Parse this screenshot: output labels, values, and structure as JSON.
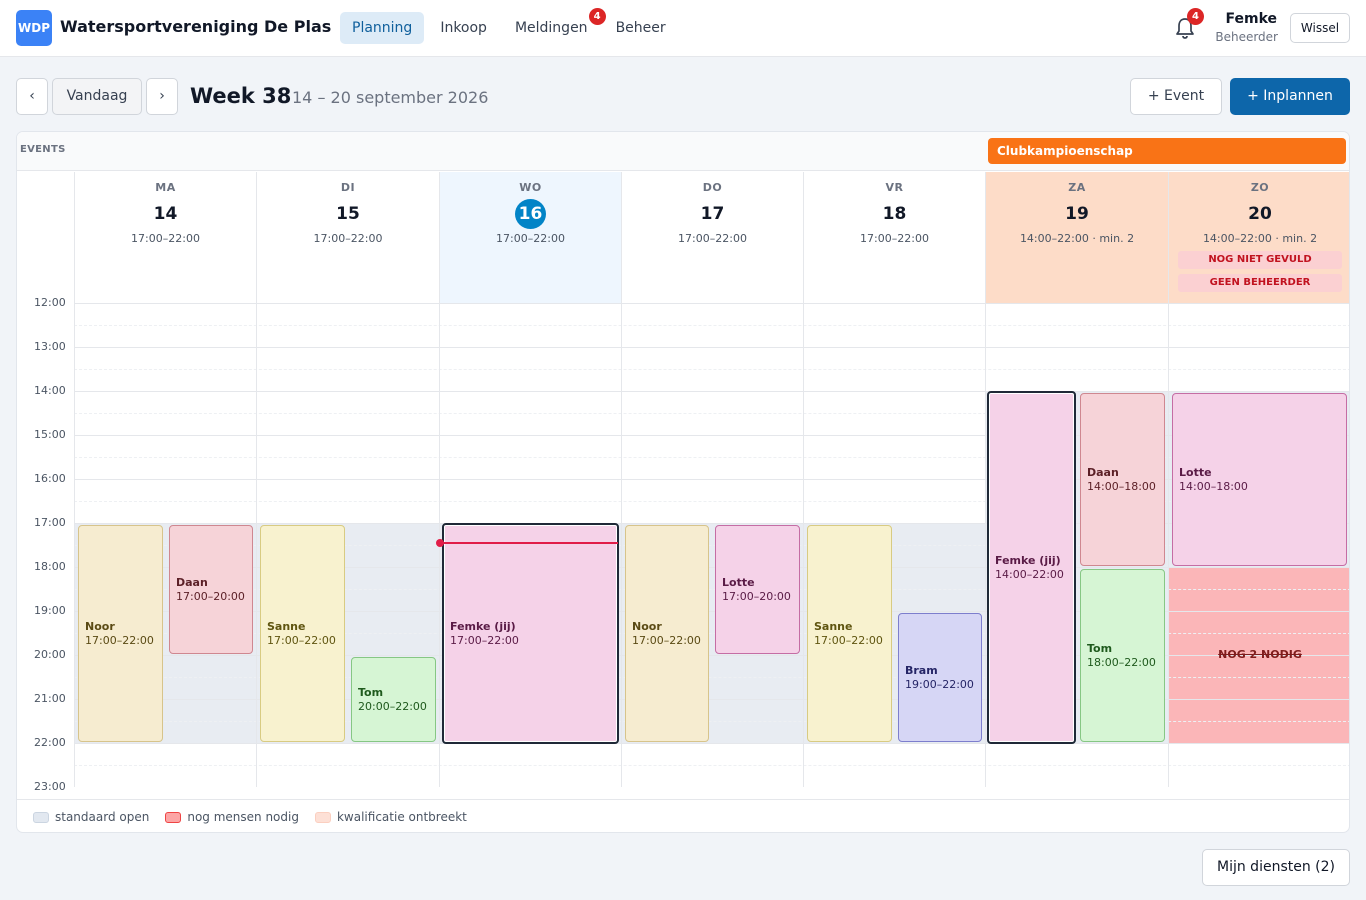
{
  "app": {
    "logo": "WDP",
    "title": "Watersportvereniging De Plas"
  },
  "nav": [
    {
      "label": "Planning",
      "active": true
    },
    {
      "label": "Inkoop"
    },
    {
      "label": "Meldingen",
      "badge": "4"
    },
    {
      "label": "Beheer"
    }
  ],
  "user": {
    "bell_badge": "4",
    "name": "Femke",
    "role": "Beheerder",
    "switch_label": "Wissel"
  },
  "toolbar": {
    "prev": "‹",
    "today": "Vandaag",
    "next": "›",
    "week_title": "Week 38",
    "week_range": "14 – 20 september 2026",
    "add_event": "+ Event",
    "schedule": "+ Inplannen"
  },
  "events": {
    "label": "EVENTS",
    "items": [
      {
        "title": "Clubkampioenschap"
      }
    ]
  },
  "days": [
    {
      "name": "MA",
      "num": "14",
      "hours": "17:00–22:00"
    },
    {
      "name": "DI",
      "num": "15",
      "hours": "17:00–22:00"
    },
    {
      "name": "WO",
      "num": "16",
      "hours": "17:00–22:00",
      "today": true
    },
    {
      "name": "DO",
      "num": "17",
      "hours": "17:00–22:00"
    },
    {
      "name": "VR",
      "num": "18",
      "hours": "17:00–22:00"
    },
    {
      "name": "ZA",
      "num": "19",
      "hours": "14:00–22:00 · min. 2"
    },
    {
      "name": "ZO",
      "num": "20",
      "hours": "14:00–22:00 · min. 2",
      "warnings": [
        "NOG NIET GEVULD",
        "GEEN BEHEERDER"
      ]
    }
  ],
  "time_labels": [
    "12:00",
    "13:00",
    "14:00",
    "15:00",
    "16:00",
    "17:00",
    "18:00",
    "19:00",
    "20:00",
    "21:00",
    "22:00",
    "23:00"
  ],
  "shifts": [
    {
      "day": 0,
      "name": "Noor",
      "time": "17:00–22:00"
    },
    {
      "day": 0,
      "name": "Daan",
      "time": "17:00–20:00"
    },
    {
      "day": 1,
      "name": "Sanne",
      "time": "17:00–22:00"
    },
    {
      "day": 1,
      "name": "Tom",
      "time": "20:00–22:00"
    },
    {
      "day": 2,
      "name": "Femke (jij)",
      "time": "17:00–22:00"
    },
    {
      "day": 3,
      "name": "Noor",
      "time": "17:00–22:00"
    },
    {
      "day": 3,
      "name": "Lotte",
      "time": "17:00–20:00"
    },
    {
      "day": 4,
      "name": "Sanne",
      "time": "17:00–22:00"
    },
    {
      "day": 4,
      "name": "Bram",
      "time": "19:00–22:00"
    },
    {
      "day": 5,
      "name": "Femke (jij)",
      "time": "14:00–22:00"
    },
    {
      "day": 5,
      "name": "Daan",
      "time": "14:00–18:00"
    },
    {
      "day": 5,
      "name": "Tom",
      "time": "18:00–22:00"
    },
    {
      "day": 6,
      "name": "Lotte",
      "time": "14:00–18:00"
    }
  ],
  "needed": {
    "label": "NOG 2 NODIG"
  },
  "legend": [
    {
      "label": "standaard open",
      "color": "#e2e8f0"
    },
    {
      "label": "nog mensen nodig",
      "color": "#fca5a5"
    },
    {
      "label": "kwalificatie ontbreekt",
      "color": "#fde0d6"
    }
  ],
  "footer": {
    "my_shifts": "Mijn diensten (2)"
  },
  "colors": {
    "primary": "#0d66aa",
    "event": "#f97316",
    "today": "#0284c7",
    "badge": "#dc2626"
  }
}
